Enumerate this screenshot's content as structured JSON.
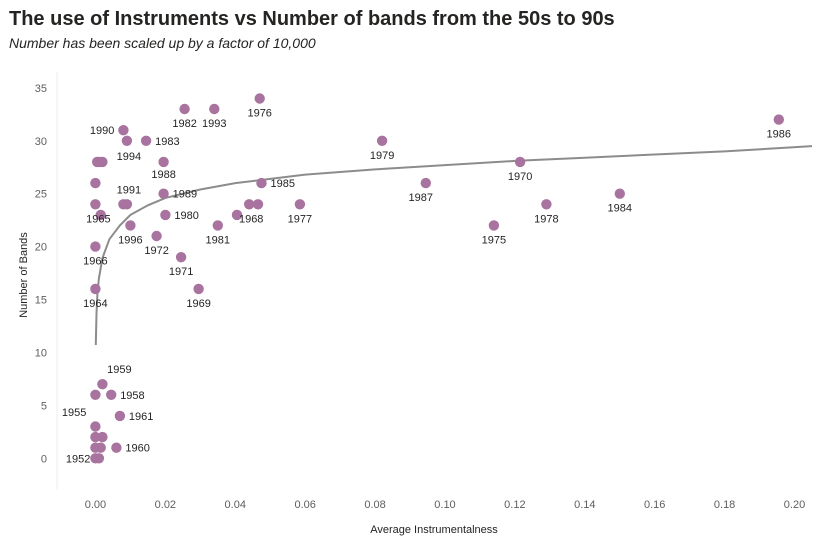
{
  "chart_data": {
    "type": "scatter",
    "title": "The use of Instruments vs Number of bands from the 50s to 90s",
    "subtitle": "Number has been scaled up by a factor of 10,000",
    "xlabel": "Average Instrumentalness",
    "ylabel": "Number of Bands",
    "xlim": [
      -0.011,
      0.205
    ],
    "ylim": [
      -3,
      36.5
    ],
    "x_ticks": [
      0.0,
      0.02,
      0.04,
      0.06,
      0.08,
      0.1,
      0.12,
      0.14,
      0.16,
      0.18,
      0.2
    ],
    "x_tick_labels": [
      "0.00",
      "0.02",
      "0.04",
      "0.06",
      "0.08",
      "0.10",
      "0.12",
      "0.14",
      "0.16",
      "0.18",
      "0.20"
    ],
    "y_ticks": [
      0,
      5,
      10,
      15,
      20,
      25,
      30,
      35
    ],
    "y_tick_labels": [
      "0",
      "5",
      "10",
      "15",
      "20",
      "25",
      "30",
      "35"
    ],
    "marker_color": "#a8739f",
    "trend_color": "#8c8c8c",
    "points": [
      {
        "x": 0.1955,
        "y": 32,
        "label": "1986"
      },
      {
        "x": 0.15,
        "y": 25,
        "label": "1984"
      },
      {
        "x": 0.129,
        "y": 24,
        "label": "1978"
      },
      {
        "x": 0.1215,
        "y": 28,
        "label": "1970"
      },
      {
        "x": 0.114,
        "y": 22,
        "label": "1975"
      },
      {
        "x": 0.0945,
        "y": 26,
        "label": "1987"
      },
      {
        "x": 0.082,
        "y": 30,
        "label": "1979"
      },
      {
        "x": 0.0585,
        "y": 24,
        "label": "1977"
      },
      {
        "x": 0.047,
        "y": 34,
        "label": "1976"
      },
      {
        "x": 0.0475,
        "y": 26,
        "label": "1985"
      },
      {
        "x": 0.0465,
        "y": 24,
        "label": ""
      },
      {
        "x": 0.044,
        "y": 24,
        "label": "1968"
      },
      {
        "x": 0.0405,
        "y": 23,
        "label": ""
      },
      {
        "x": 0.034,
        "y": 33,
        "label": "1993"
      },
      {
        "x": 0.0255,
        "y": 33,
        "label": "1982"
      },
      {
        "x": 0.035,
        "y": 22,
        "label": "1981"
      },
      {
        "x": 0.0295,
        "y": 16,
        "label": "1969"
      },
      {
        "x": 0.0245,
        "y": 19,
        "label": "1971"
      },
      {
        "x": 0.0195,
        "y": 28,
        "label": "1988"
      },
      {
        "x": 0.0195,
        "y": 25,
        "label": "1989"
      },
      {
        "x": 0.02,
        "y": 23,
        "label": "1980"
      },
      {
        "x": 0.0175,
        "y": 21,
        "label": "1972"
      },
      {
        "x": 0.0145,
        "y": 30,
        "label": "1983"
      },
      {
        "x": 0.008,
        "y": 31,
        "label": "1990"
      },
      {
        "x": 0.009,
        "y": 30,
        "label": "1994"
      },
      {
        "x": 0.008,
        "y": 24,
        "label": ""
      },
      {
        "x": 0.009,
        "y": 24,
        "label": "1991"
      },
      {
        "x": 0.01,
        "y": 22,
        "label": "1996"
      },
      {
        "x": 0.0005,
        "y": 28,
        "label": ""
      },
      {
        "x": 0.001,
        "y": 28,
        "label": ""
      },
      {
        "x": 0.002,
        "y": 28,
        "label": ""
      },
      {
        "x": 0.0,
        "y": 26,
        "label": ""
      },
      {
        "x": 0.0,
        "y": 24,
        "label": "1965"
      },
      {
        "x": 0.0015,
        "y": 23,
        "label": ""
      },
      {
        "x": 0.0,
        "y": 20,
        "label": "1966"
      },
      {
        "x": 0.0,
        "y": 16,
        "label": "1964"
      },
      {
        "x": 0.002,
        "y": 7,
        "label": "1959"
      },
      {
        "x": 0.0,
        "y": 6,
        "label": "1955"
      },
      {
        "x": 0.0045,
        "y": 6,
        "label": "1958"
      },
      {
        "x": 0.007,
        "y": 4,
        "label": "1961"
      },
      {
        "x": 0.0,
        "y": 3,
        "label": ""
      },
      {
        "x": 0.0,
        "y": 2,
        "label": ""
      },
      {
        "x": 0.002,
        "y": 2,
        "label": ""
      },
      {
        "x": 0.0,
        "y": 1,
        "label": ""
      },
      {
        "x": 0.0015,
        "y": 1,
        "label": ""
      },
      {
        "x": 0.006,
        "y": 1,
        "label": "1960"
      },
      {
        "x": 0.0,
        "y": 0,
        "label": "1952"
      },
      {
        "x": 0.001,
        "y": 0,
        "label": ""
      }
    ],
    "trend_line": {
      "type": "logarithmic",
      "x_start": 0.0001,
      "x_end": 0.205,
      "points": [
        [
          0.0001,
          10.7
        ],
        [
          0.0003,
          13.7
        ],
        [
          0.0006,
          15.7
        ],
        [
          0.001,
          17.0
        ],
        [
          0.002,
          18.9
        ],
        [
          0.004,
          20.7
        ],
        [
          0.007,
          22.0
        ],
        [
          0.01,
          23.0
        ],
        [
          0.015,
          23.9
        ],
        [
          0.02,
          24.6
        ],
        [
          0.03,
          25.4
        ],
        [
          0.04,
          26.0
        ],
        [
          0.05,
          26.4
        ],
        [
          0.06,
          26.8
        ],
        [
          0.08,
          27.3
        ],
        [
          0.1,
          27.7
        ],
        [
          0.12,
          28.1
        ],
        [
          0.14,
          28.4
        ],
        [
          0.16,
          28.7
        ],
        [
          0.18,
          29.0
        ],
        [
          0.205,
          29.5
        ]
      ]
    }
  }
}
